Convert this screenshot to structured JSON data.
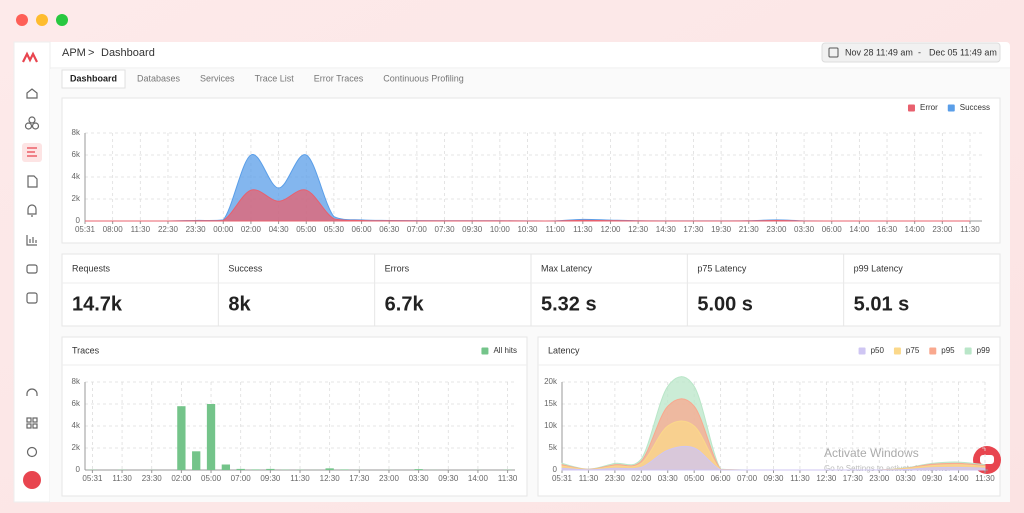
{
  "breadcrumb": {
    "parent": "APM",
    "separator": ">",
    "current": "Dashboard"
  },
  "date_range": {
    "start": "Nov 28 11:49 am",
    "separator": "-",
    "end": "Dec 05 11:49 am"
  },
  "tabs": [
    "Dashboard",
    "Databases",
    "Services",
    "Trace List",
    "Error Traces",
    "Continuous Profiling"
  ],
  "active_tab": 0,
  "stats": [
    {
      "label": "Requests",
      "value": "14.7k"
    },
    {
      "label": "Success",
      "value": "8k"
    },
    {
      "label": "Errors",
      "value": "6.7k"
    },
    {
      "label": "Max Latency",
      "value": "5.32 s"
    },
    {
      "label": "p75 Latency",
      "value": "5.00 s"
    },
    {
      "label": "p99 Latency",
      "value": "5.01 s"
    }
  ],
  "watermark": {
    "title": "Activate Windows",
    "text": "Go to Settings to activate Windows."
  },
  "chart_data": [
    {
      "type": "area",
      "legend": "top-right",
      "grid": true,
      "categories": [
        "05:31",
        "08:00",
        "11:30",
        "22:30",
        "23:30",
        "00:00",
        "02:00",
        "04:30",
        "05:00",
        "05:30",
        "06:00",
        "06:30",
        "07:00",
        "07:30",
        "09:30",
        "10:00",
        "10:30",
        "11:00",
        "11:30",
        "12:00",
        "12:30",
        "14:30",
        "17:30",
        "19:30",
        "21:30",
        "23:00",
        "03:30",
        "06:00",
        "14:00",
        "16:30",
        "14:00",
        "23:00",
        "11:30"
      ],
      "series": [
        {
          "name": "Error",
          "color": "#e8606e",
          "values": [
            0,
            0,
            0,
            0,
            20,
            50,
            2800,
            1800,
            2800,
            200,
            50,
            20,
            10,
            10,
            10,
            10,
            5,
            5,
            60,
            30,
            10,
            5,
            5,
            5,
            10,
            40,
            5,
            0,
            0,
            0,
            0,
            0,
            0
          ]
        },
        {
          "name": "Success",
          "color": "#5a9ee8",
          "values": [
            0,
            0,
            0,
            0,
            50,
            100,
            6000,
            3000,
            6000,
            400,
            100,
            50,
            30,
            20,
            20,
            20,
            10,
            10,
            150,
            80,
            20,
            10,
            10,
            10,
            20,
            100,
            10,
            0,
            0,
            0,
            0,
            0,
            0
          ]
        }
      ],
      "ylim": [
        0,
        8000
      ],
      "yticks": [
        0,
        {
          "value": 2000,
          "label": "2k"
        },
        {
          "value": 4000,
          "label": "4k"
        },
        {
          "value": 6000,
          "label": "6k"
        },
        {
          "value": 8000,
          "label": "8k"
        }
      ]
    },
    {
      "type": "bar",
      "title": "Traces",
      "legend": "top-right",
      "grid": true,
      "categories": [
        "05:31",
        null,
        "11:30",
        null,
        "23:30",
        null,
        "02:00",
        null,
        "05:00",
        null,
        "07:00",
        null,
        "09:30",
        null,
        "11:30",
        null,
        "12:30",
        null,
        "17:30",
        null,
        "23:00",
        null,
        "03:30",
        null,
        "09:30",
        null,
        "14:00",
        null,
        "11:30"
      ],
      "series": [
        {
          "name": "All hits",
          "color": "#74c48a",
          "values": [
            20,
            0,
            20,
            0,
            10,
            0,
            5800,
            1700,
            6000,
            500,
            100,
            50,
            100,
            30,
            20,
            10,
            150,
            50,
            10,
            0,
            10,
            0,
            80,
            10,
            0,
            0,
            10,
            0,
            20
          ]
        }
      ],
      "ylim": [
        0,
        8000
      ],
      "yticks": [
        0,
        {
          "value": 2000,
          "label": "2k"
        },
        {
          "value": 4000,
          "label": "4k"
        },
        {
          "value": 6000,
          "label": "6k"
        },
        {
          "value": 8000,
          "label": "8k"
        }
      ]
    },
    {
      "type": "area",
      "title": "Latency",
      "legend": "top-right",
      "grid": true,
      "categories": [
        "05:31",
        "11:30",
        "23:30",
        "02:00",
        "03:30",
        "05:00",
        "06:00",
        "07:00",
        "09:30",
        "11:30",
        "12:30",
        "17:30",
        "23:00",
        "03:30",
        "09:30",
        "14:00",
        "11:30"
      ],
      "series": [
        {
          "name": "p50",
          "color": "#cfc6f3",
          "values": [
            400,
            50,
            400,
            600,
            4500,
            5000,
            50,
            0,
            0,
            0,
            0,
            0,
            0,
            100,
            500,
            600,
            400
          ]
        },
        {
          "name": "p75",
          "color": "#fbd88a",
          "values": [
            900,
            100,
            900,
            1500,
            10000,
            10000,
            100,
            0,
            0,
            0,
            0,
            0,
            0,
            300,
            1000,
            1200,
            800
          ]
        },
        {
          "name": "p95",
          "color": "#f9a88e",
          "values": [
            1200,
            150,
            1200,
            2000,
            14500,
            14500,
            150,
            0,
            0,
            0,
            0,
            0,
            0,
            400,
            1300,
            1500,
            1000
          ]
        },
        {
          "name": "p99",
          "color": "#b9e6c8",
          "values": [
            1500,
            200,
            1500,
            2500,
            19000,
            19000,
            200,
            0,
            0,
            0,
            0,
            0,
            0,
            500,
            1500,
            1800,
            1200
          ]
        }
      ],
      "ylim": [
        0,
        20000
      ],
      "yticks": [
        0,
        {
          "value": 5000,
          "label": "5k"
        },
        {
          "value": 10000,
          "label": "10k"
        },
        {
          "value": 15000,
          "label": "15k"
        },
        {
          "value": 20000,
          "label": "20k"
        }
      ]
    }
  ]
}
